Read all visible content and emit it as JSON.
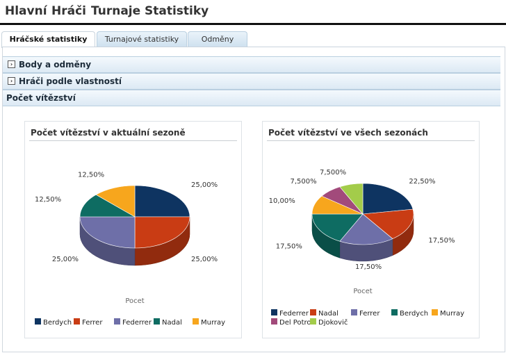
{
  "nav": {
    "items": [
      "Hlavní",
      "Hráči",
      "Turnaje",
      "Statistiky"
    ]
  },
  "tabs": [
    {
      "label": "Hráčské statistiky",
      "active": true
    },
    {
      "label": "Turnajové statistiky",
      "active": false
    },
    {
      "label": "Odměny",
      "active": false
    }
  ],
  "accordion": [
    {
      "label": "Body a odměny",
      "expanded": false,
      "icon": "expand-arrow-icon"
    },
    {
      "label": "Hráči podle vlastností",
      "expanded": false,
      "icon": "expand-arrow-icon"
    },
    {
      "label": "Počet vítězství",
      "expanded": true
    }
  ],
  "chart_data": [
    {
      "type": "pie",
      "title": "Počet vítězství v aktuální sezoně",
      "xlabel": "Pocet",
      "legend_position": "bottom",
      "slices": [
        {
          "name": "Berdych",
          "value": 25.0,
          "label": "25,00%",
          "color": "#0e3461"
        },
        {
          "name": "Ferrer",
          "value": 25.0,
          "label": "25,00%",
          "color": "#c93c14"
        },
        {
          "name": "Federrer",
          "value": 25.0,
          "label": "25,00%",
          "color": "#6e6fa8"
        },
        {
          "name": "Nadal",
          "value": 12.5,
          "label": "12,50%",
          "color": "#0e6c62"
        },
        {
          "name": "Murray",
          "value": 12.5,
          "label": "12,50%",
          "color": "#f7a61d"
        }
      ]
    },
    {
      "type": "pie",
      "title": "Počet vítězství ve všech sezonách",
      "xlabel": "Pocet",
      "legend_position": "bottom",
      "slices": [
        {
          "name": "Federrer",
          "value": 22.5,
          "label": "22,50%",
          "color": "#0e3461"
        },
        {
          "name": "Nadal",
          "value": 17.5,
          "label": "17,50%",
          "color": "#c93c14"
        },
        {
          "name": "Ferrer",
          "value": 17.5,
          "label": "17,50%",
          "color": "#6e6fa8"
        },
        {
          "name": "Berdych",
          "value": 17.5,
          "label": "17,50%",
          "color": "#0e6c62"
        },
        {
          "name": "Murray",
          "value": 10.0,
          "label": "10,00%",
          "color": "#f7a61d"
        },
        {
          "name": "Del Potro",
          "value": 7.5,
          "label": "7,500%",
          "color": "#a24a7b"
        },
        {
          "name": "Djokovič",
          "value": 7.5,
          "label": "7,500%",
          "color": "#a3cc4a"
        }
      ]
    }
  ]
}
